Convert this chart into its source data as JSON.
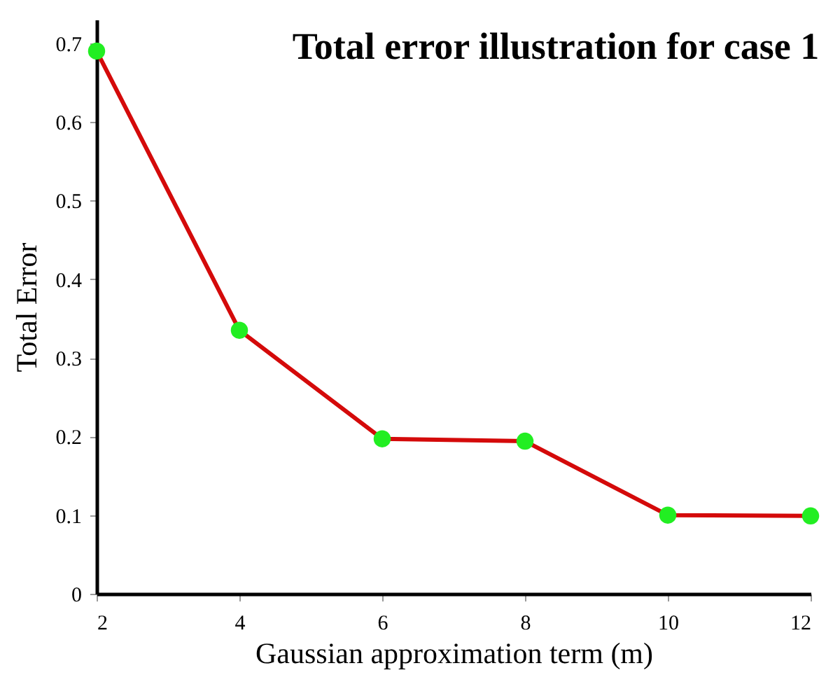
{
  "chart_data": {
    "type": "line",
    "title": "Total error illustration for case 1",
    "xlabel": "Gaussian approximation term (m)",
    "ylabel": "Total Error",
    "x": [
      2,
      4,
      6,
      8,
      10,
      12
    ],
    "series": [
      {
        "color": "#d40a0a",
        "values": [
          0.69,
          0.335,
          0.197,
          0.194,
          0.1,
          0.099
        ]
      }
    ],
    "xlim": [
      2,
      12
    ],
    "xticks": [
      2,
      4,
      6,
      8,
      10,
      12
    ],
    "ylim": [
      0,
      0.73
    ],
    "yticks": [
      0,
      0.1,
      0.2,
      0.3,
      0.4,
      0.5,
      0.6,
      0.7
    ],
    "marker": "circle"
  }
}
